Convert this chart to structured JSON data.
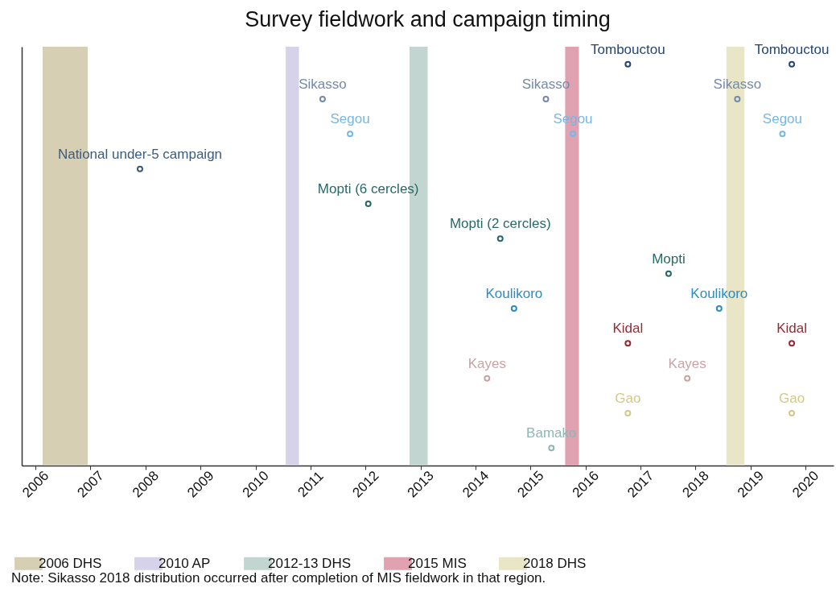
{
  "chart_data": {
    "type": "scatter",
    "orientation": "horizontal",
    "title": "Survey fieldwork and campaign timing",
    "marker": "circle",
    "legend": "bottom",
    "grid": false,
    "xlim": [
      2005.75,
      2020.51
    ],
    "xticks": [
      2006,
      2007,
      2008,
      2009,
      2010,
      2011,
      2012,
      2013,
      2014,
      2015,
      2016,
      2017,
      2018,
      2019,
      2020
    ],
    "categories": [
      null,
      null,
      null,
      null,
      null,
      null,
      null,
      null,
      null,
      null,
      null,
      null
    ],
    "series": [
      {
        "values": [
          2016.77,
          2011.22,
          2011.72,
          2007.9,
          2012.05,
          2014.45,
          2017.51,
          2014.7,
          2016.77,
          2014.21,
          2016.77,
          2015.38
        ],
        "colors": [
          "#27466e",
          "#7489ab",
          "#79b6e3",
          "#3b5b7c",
          "#2a6867",
          "#2a6867",
          "#2a6867",
          "#2d8cc0",
          "#962a33",
          "#c8a3a3",
          "#d3c886",
          "#8db7b4"
        ]
      },
      {
        "values": [
          2019.75,
          2015.28,
          2015.77,
          null,
          null,
          null,
          null,
          2018.43,
          2019.75,
          2017.85,
          2019.75,
          null
        ],
        "colors": [
          "#27466e",
          "#7489ab",
          "#79b6e3",
          null,
          null,
          null,
          null,
          "#2d8cc0",
          "#962a33",
          "#c8a3a3",
          "#d3c886",
          null
        ]
      },
      {
        "values": [
          null,
          2018.76,
          2019.58,
          null,
          null,
          null,
          null,
          null,
          null,
          null,
          null,
          null
        ],
        "colors": [
          null,
          "#7489ab",
          "#79b6e3",
          null,
          null,
          null,
          null,
          null,
          null,
          null,
          null,
          null
        ]
      }
    ],
    "bands": [
      {
        "axis": "x",
        "from": 2006.13,
        "to": 2006.95,
        "label": "2006 DHS",
        "color": "#d6cfb3"
      },
      {
        "axis": "x",
        "from": 2010.55,
        "to": 2010.79,
        "label": "2010 AP",
        "color": "#d5d2ea"
      },
      {
        "axis": "x",
        "from": 2012.8,
        "to": 2013.13,
        "label": "2012-13 DHS",
        "color": "#c3d5d0"
      },
      {
        "axis": "x",
        "from": 2015.63,
        "to": 2015.88,
        "label": "2015 MIS",
        "color": "#e0a1b1"
      },
      {
        "axis": "x",
        "from": 2018.56,
        "to": 2018.89,
        "label": "2018 DHS",
        "color": "#e8e6c6"
      }
    ],
    "annotations": [
      "Tombouctou",
      "Sikasso",
      "Segou",
      "National under-5 campaign",
      "Mopti (6 cercles)",
      "Mopti (2 cercles)",
      "Mopti",
      "Koulikoro",
      "Kidal",
      "Kayes",
      "Gao",
      "Bamako",
      "Tombouctou",
      "Sikasso",
      "Segou",
      "Koulikoro",
      "Kidal",
      "Kayes",
      "Gao",
      "Sikasso",
      "Segou",
      "Note: Sikasso 2018 distribution occurred after completion of MIS fieldwork in that region."
    ]
  }
}
